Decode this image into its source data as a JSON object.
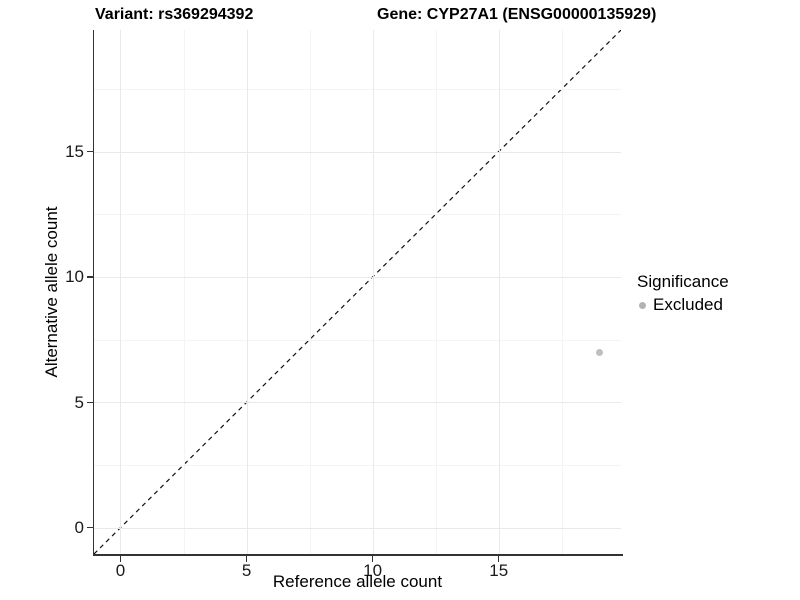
{
  "chart_data": {
    "type": "scatter",
    "title_left": "Variant: rs369294392",
    "title_right": "Gene: CYP27A1 (ENSG00000135929)",
    "xlabel": "Reference allele count",
    "ylabel": "Alternative allele count",
    "xlim": [
      -1.05,
      19.85
    ],
    "ylim": [
      -1.05,
      19.85
    ],
    "xticks": [
      0,
      5,
      10,
      15
    ],
    "yticks": [
      0,
      5,
      10,
      15
    ],
    "xticks_minor": [
      2.5,
      7.5,
      12.5,
      17.5
    ],
    "yticks_minor": [
      2.5,
      7.5,
      12.5,
      17.5
    ],
    "grid": "major and minor, very light gray on white",
    "identity_line": {
      "equation": "y = x",
      "style": "dashed",
      "color": "#111111"
    },
    "series": [
      {
        "name": "Excluded",
        "color": "#bfbfbf",
        "points": [
          {
            "x": 19,
            "y": 7
          }
        ]
      }
    ],
    "legend": {
      "title": "Significance",
      "position": "right",
      "items": [
        {
          "label": "Excluded",
          "color": "#b3b3b3"
        }
      ]
    },
    "colors": {
      "axis": "#333333",
      "grid_major": "#e9e9e9",
      "grid_minor": "#f4f4f4",
      "point": "#bfbfbf",
      "background": "#ffffff"
    }
  }
}
